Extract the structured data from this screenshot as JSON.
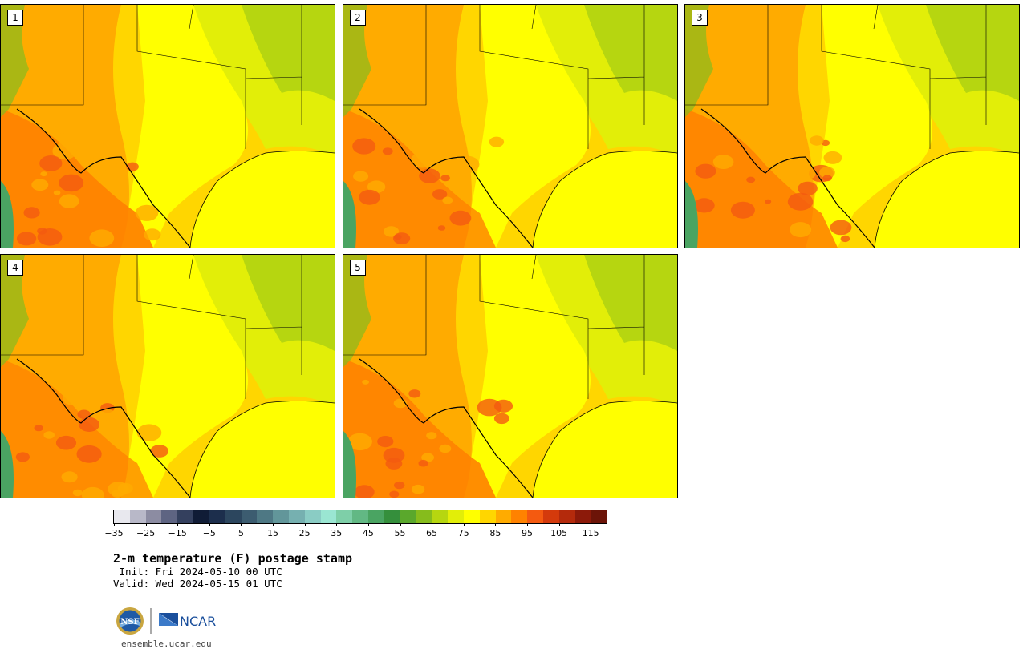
{
  "panels": [
    {
      "label": "1",
      "tint": 0.55
    },
    {
      "label": "2",
      "tint": 0.35
    },
    {
      "label": "3",
      "tint": 0.45
    },
    {
      "label": "4",
      "tint": 0.25
    },
    {
      "label": "5",
      "tint": 0.5
    }
  ],
  "colorbar": {
    "colors": [
      "#e8e8ee",
      "#b8b8c8",
      "#8c8ca2",
      "#5e6482",
      "#34405e",
      "#101c36",
      "#1c2e4c",
      "#2c465e",
      "#3c5c70",
      "#4e7884",
      "#62969a",
      "#76b0b0",
      "#8accc4",
      "#9ae6d2",
      "#7ecfa8",
      "#62b884",
      "#4aa462",
      "#358f3c",
      "#5aa82c",
      "#86bc1c",
      "#b6d610",
      "#e2ee08",
      "#ffff00",
      "#ffd600",
      "#ffab00",
      "#ff8200",
      "#f45a10",
      "#d43a0c",
      "#b42a0c",
      "#8c1a0a",
      "#6c1408"
    ],
    "ticks": [
      "−35",
      "−25",
      "−15",
      "−5",
      "5",
      "15",
      "25",
      "35",
      "45",
      "55",
      "65",
      "75",
      "85",
      "95",
      "105",
      "115"
    ]
  },
  "title": "2-m temperature (F) postage stamp",
  "init": " Init: Fri 2024-05-10 00 UTC",
  "valid": "Valid: Wed 2024-05-15 01 UTC",
  "url": "ensemble.ucar.edu",
  "logos": {
    "nsf": "NSF",
    "ncar": "NCAR"
  }
}
